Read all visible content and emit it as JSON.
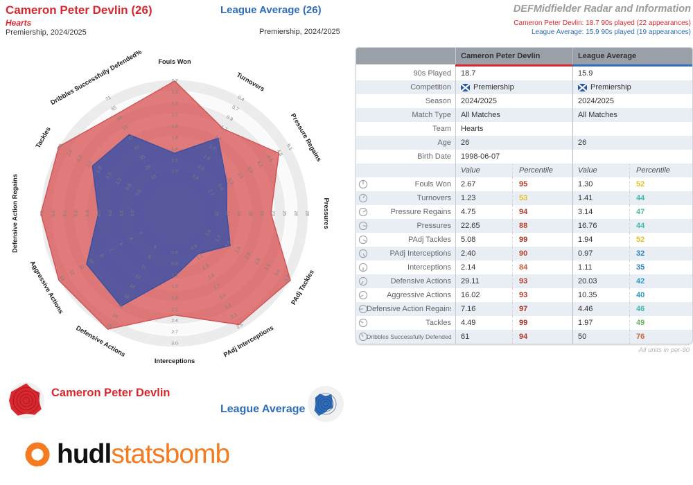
{
  "header": {
    "player_name": "Cameron Peter Devlin (26)",
    "player_team": "Hearts",
    "player_competition": "Premiership, 2024/2025",
    "league_name": "League Average (26)",
    "league_competition": "Premiership, 2024/2025",
    "report_title": "DEFMidfielder Radar and Information",
    "player_minutes": "Cameron Peter Devlin: 18.7 90s played (22 appearances)",
    "league_minutes": "League Average: 15.9 90s played (19 appearances)"
  },
  "table": {
    "col_player": "Cameron Peter Devlin",
    "col_league": "League Average",
    "player_accent": "#D7282F",
    "league_accent": "#2F6DB8",
    "info_rows": [
      {
        "label": "90s Played",
        "player": "18.7",
        "league": "15.9"
      },
      {
        "label": "Competition",
        "player": "Premiership",
        "league": "Premiership",
        "flag": true
      },
      {
        "label": "Season",
        "player": "2024/2025",
        "league": "2024/2025"
      },
      {
        "label": "Match Type",
        "player": "All Matches",
        "league": "All Matches"
      },
      {
        "label": "Team",
        "player": "Hearts",
        "league": ""
      },
      {
        "label": "Age",
        "player": "26",
        "league": "26"
      },
      {
        "label": "Birth Date",
        "player": "1998-06-07",
        "league": ""
      }
    ],
    "subheader": {
      "value": "Value",
      "percentile": "Percentile"
    },
    "stat_rows": [
      {
        "label": "Fouls Won",
        "pv": "2.67",
        "pp": "95",
        "ppc": "#b03a2e",
        "lv": "1.30",
        "lp": "52",
        "lpc": "#e2c229"
      },
      {
        "label": "Turnovers",
        "pv": "1.23",
        "pp": "53",
        "ppc": "#e2c229",
        "lv": "1.41",
        "lp": "44",
        "lpc": "#3ab7ae"
      },
      {
        "label": "Pressure Regains",
        "pv": "4.75",
        "pp": "94",
        "ppc": "#b03a2e",
        "lv": "3.14",
        "lp": "47",
        "lpc": "#49bd92"
      },
      {
        "label": "Pressures",
        "pv": "22.65",
        "pp": "88",
        "ppc": "#b8432f",
        "lv": "16.76",
        "lp": "44",
        "lpc": "#3ab7ae"
      },
      {
        "label": "PAdj Tackles",
        "pv": "5.08",
        "pp": "99",
        "ppc": "#a93226",
        "lv": "1.94",
        "lp": "52",
        "lpc": "#e2c229"
      },
      {
        "label": "PAdj Interceptions",
        "pv": "2.40",
        "pp": "90",
        "ppc": "#b8432f",
        "lv": "0.97",
        "lp": "32",
        "lpc": "#2e86c1"
      },
      {
        "label": "Interceptions",
        "pv": "2.14",
        "pp": "84",
        "ppc": "#c05a38",
        "lv": "1.11",
        "lp": "35",
        "lpc": "#2e86c1"
      },
      {
        "label": "Defensive Actions",
        "pv": "29.11",
        "pp": "93",
        "ppc": "#b03a2e",
        "lv": "20.03",
        "lp": "42",
        "lpc": "#2e9ac7"
      },
      {
        "label": "Aggressive Actions",
        "pv": "16.02",
        "pp": "93",
        "ppc": "#b03a2e",
        "lv": "10.35",
        "lp": "40",
        "lpc": "#2e9ac7"
      },
      {
        "label": "Defensive Action Regains",
        "pv": "7.16",
        "pp": "97",
        "ppc": "#a93226",
        "lv": "4.46",
        "lp": "46",
        "lpc": "#3ab7ae"
      },
      {
        "label": "Tackles",
        "pv": "4.49",
        "pp": "99",
        "ppc": "#a93226",
        "lv": "1.97",
        "lp": "49",
        "lpc": "#67b860"
      },
      {
        "label": "Dribbles Successfully Defended%",
        "pv": "61",
        "pp": "94",
        "ppc": "#b03a2e",
        "lv": "50",
        "lp": "76",
        "lpc": "#c96a42"
      }
    ],
    "units_note": "All units in per-90"
  },
  "chart_data": {
    "type": "radar",
    "title": "DEFMidfielder Radar",
    "ring_fractions": [
      0.32,
      0.405,
      0.49,
      0.575,
      0.66,
      0.745,
      0.83,
      0.915,
      1.0
    ],
    "band_gray": "#ececec",
    "band_light": "#fafafa",
    "series": [
      {
        "name": "Cameron Peter Devlin",
        "color": "#D7282F",
        "fill": "rgba(214,72,74,0.72)",
        "stroke": "#cf5456",
        "r": [
          0.99,
          0.73,
          0.9,
          0.72,
          1.0,
          0.96,
          0.76,
          1.0,
          1.0,
          1.0,
          1.0,
          0.86
        ]
      },
      {
        "name": "League Average",
        "color": "#2F6DB8",
        "fill": "rgba(62,82,165,0.85)",
        "stroke": "#3d4fa0",
        "r": [
          0.45,
          0.65,
          0.45,
          0.39,
          0.48,
          0.35,
          0.47,
          0.8,
          0.76,
          0.57,
          0.71,
          0.68
        ]
      }
    ],
    "axes": [
      {
        "label": "Fouls Won",
        "ticks": [
          "1.0",
          "1.2",
          "1.4",
          "1.6",
          "1.8",
          "2.1",
          "2.3",
          "2.5",
          "2.7"
        ],
        "player_value": 2.67,
        "player_percentile": 95,
        "league_value": 1.3,
        "league_percentile": 52
      },
      {
        "label": "Turnovers",
        "ticks": [
          "2.4",
          "2.1",
          "1.9",
          "1.6",
          "1.4",
          "1.2",
          "0.9",
          "0.7",
          "0.4"
        ],
        "player_value": 1.23,
        "player_percentile": 53,
        "league_value": 1.41,
        "league_percentile": 44
      },
      {
        "label": "Pressure Regains",
        "ticks": [
          "2.7",
          "3.0",
          "3.3",
          "3.6",
          "3.9",
          "4.2",
          "4.5",
          "4.8",
          "5.1"
        ],
        "player_value": 4.75,
        "player_percentile": 94,
        "league_value": 3.14,
        "league_percentile": 47
      },
      {
        "label": "Pressures",
        "ticks": [
          "16",
          "17",
          "19",
          "20",
          "22",
          "23",
          "25",
          "26",
          "28"
        ],
        "player_value": 22.65,
        "player_percentile": 88,
        "league_value": 16.76,
        "league_percentile": 44
      },
      {
        "label": "PAdj Tackles",
        "ticks": [
          "1.4",
          "1.7",
          "2.0",
          "2.3",
          "2.5",
          "2.8",
          "3.1",
          "3.4",
          "3.7"
        ],
        "player_value": 5.08,
        "player_percentile": 99,
        "league_value": 1.94,
        "league_percentile": 52
      },
      {
        "label": "PAdj Interceptions",
        "ticks": [
          "0.9",
          "1.1",
          "1.3",
          "1.5",
          "1.7",
          "1.9",
          "2.1",
          "2.3",
          "2.5"
        ],
        "player_value": 2.4,
        "player_percentile": 90,
        "league_value": 0.97,
        "league_percentile": 32
      },
      {
        "label": "Interceptions",
        "ticks": [
          "0.6",
          "0.9",
          "1.2",
          "1.5",
          "1.8",
          "2.1",
          "2.4",
          "2.7",
          "3.0"
        ],
        "player_value": 2.14,
        "player_percentile": 84,
        "league_value": 1.11,
        "league_percentile": 35
      },
      {
        "label": "Defensive Actions",
        "ticks": [
          "6",
          "8",
          "11",
          "13",
          "16",
          "18",
          "21",
          "24",
          "26"
        ],
        "player_value": 29.11,
        "player_percentile": 93,
        "league_value": 20.03,
        "league_percentile": 42
      },
      {
        "label": "Aggressive Actions",
        "ticks": [
          "3",
          "4",
          "6",
          "7",
          "8",
          "10",
          "11",
          "12",
          "14"
        ],
        "player_value": 16.02,
        "player_percentile": 93,
        "league_value": 10.35,
        "league_percentile": 40
      },
      {
        "label": "Defensive Action Regains",
        "ticks": [
          "3.0",
          "3.5",
          "4.0",
          "4.5",
          "5.0",
          "5.6",
          "6.1",
          "6.6",
          "7.1"
        ],
        "player_value": 7.16,
        "player_percentile": 97,
        "league_value": 4.46,
        "league_percentile": 46
      },
      {
        "label": "Tackles",
        "ticks": [
          "0.6",
          "0.9",
          "1.2",
          "1.5",
          "1.8",
          "2.0",
          "2.3",
          "2.6",
          "2.9"
        ],
        "player_value": 4.49,
        "player_percentile": 99,
        "league_value": 1.97,
        "league_percentile": 49
      },
      {
        "label": "Dribbles Successfully Defended%",
        "ticks": [
          "23",
          "29",
          "35",
          "41",
          "47",
          "53",
          "59",
          "65",
          "71"
        ],
        "player_value": 61,
        "player_percentile": 94,
        "league_value": 50,
        "league_percentile": 76
      }
    ]
  },
  "legend": {
    "player_label": "Cameron Peter Devlin",
    "league_label": "League Average",
    "player_color": "#D7282F",
    "league_color": "#2F6DB8"
  },
  "logo": {
    "hudl": "hudl",
    "statsbomb": "statsbomb",
    "orange": "#F47B20"
  }
}
